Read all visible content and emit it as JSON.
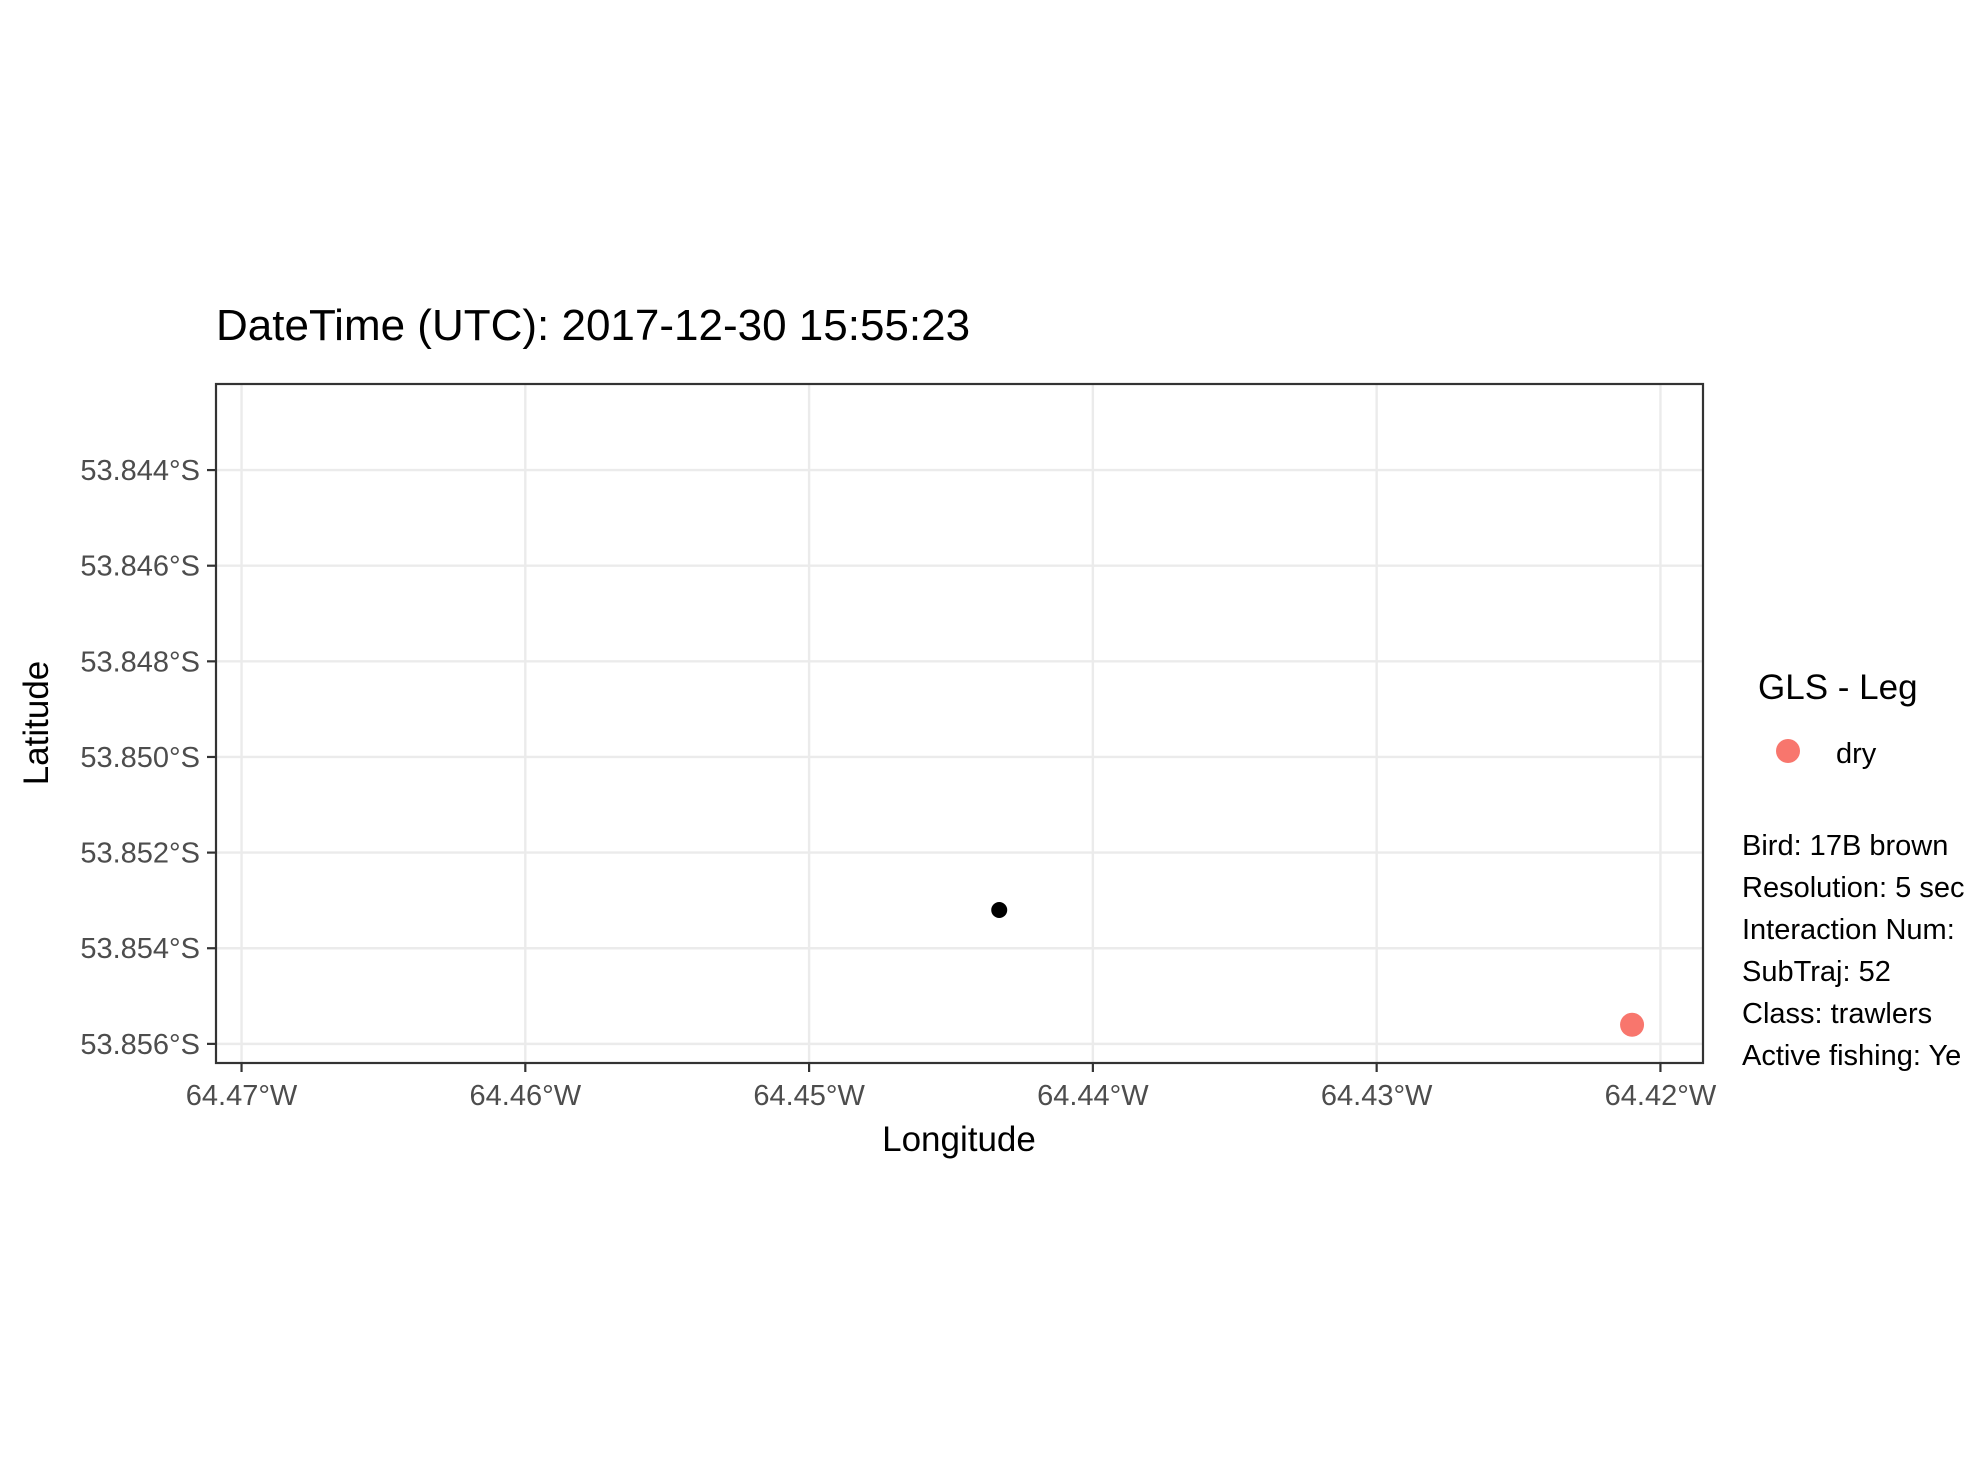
{
  "chart_data": {
    "type": "scatter",
    "title": "DateTime (UTC): 2017-12-30 15:55:23",
    "xlabel": "Longitude",
    "ylabel": "Latitude",
    "xlim": [
      -64.4709,
      -64.4185
    ],
    "ylim": [
      -53.8564,
      -53.8422
    ],
    "x_ticks": [
      {
        "value": -64.47,
        "label": "64.47°W"
      },
      {
        "value": -64.46,
        "label": "64.46°W"
      },
      {
        "value": -64.45,
        "label": "64.45°W"
      },
      {
        "value": -64.44,
        "label": "64.44°W"
      },
      {
        "value": -64.43,
        "label": "64.43°W"
      },
      {
        "value": -64.42,
        "label": "64.42°W"
      }
    ],
    "y_ticks": [
      {
        "value": -53.844,
        "label": "53.844°S"
      },
      {
        "value": -53.846,
        "label": "53.846°S"
      },
      {
        "value": -53.848,
        "label": "53.848°S"
      },
      {
        "value": -53.85,
        "label": "53.850°S"
      },
      {
        "value": -53.852,
        "label": "53.852°S"
      },
      {
        "value": -53.854,
        "label": "53.854°S"
      },
      {
        "value": -53.856,
        "label": "53.856°S"
      }
    ],
    "grid": true,
    "series": [
      {
        "name": "dry",
        "color": "#f8766d",
        "points": [
          {
            "x": -64.421,
            "y": -53.8556
          }
        ]
      }
    ],
    "extra_points": [
      {
        "x": -64.4433,
        "y": -53.8532,
        "color": "#000000"
      }
    ],
    "legend": {
      "title": "GLS - Leg",
      "position": "right",
      "entries": [
        {
          "label": "dry",
          "color": "#f8766d"
        }
      ]
    },
    "caption_lines": [
      "Bird: 17B brown",
      "Resolution: 5 sec",
      "Interaction Num: ",
      "SubTraj: 52",
      "Class: trawlers",
      "Active fishing: Ye"
    ]
  }
}
